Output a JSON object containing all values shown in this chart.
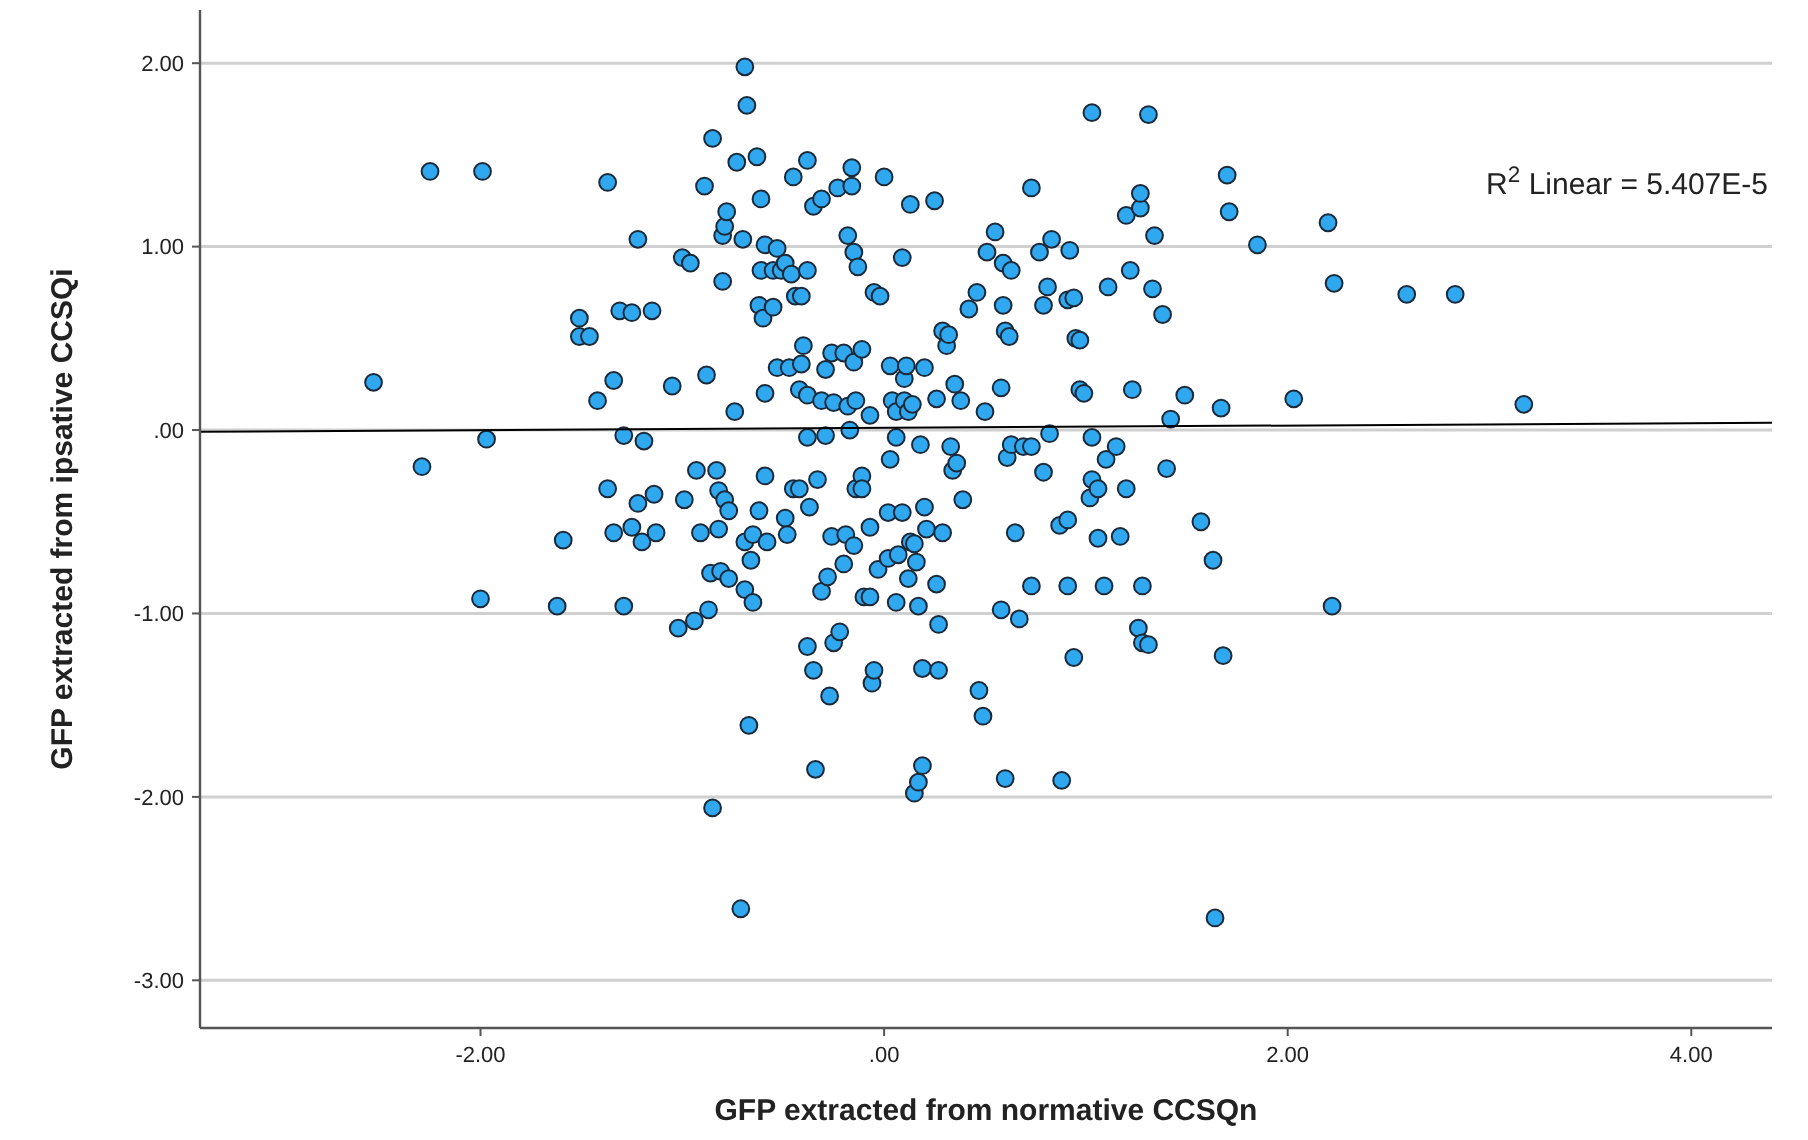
{
  "chart_data": {
    "type": "scatter",
    "xlabel": "GFP extracted from normative CCSQn",
    "ylabel": "GFP extracted from ipsative CCSQi",
    "annotations": [
      "R$^{2}$ Linear = 5.407E-5"
    ],
    "xlim": [
      -3.39,
      4.4
    ],
    "ylim": [
      -3.26,
      2.29
    ],
    "xticks": [
      {
        "value": -2,
        "label": "-2.00"
      },
      {
        "value": 0,
        "label": ".00"
      },
      {
        "value": 2,
        "label": "2.00"
      },
      {
        "value": 4,
        "label": "4.00"
      }
    ],
    "yticks": [
      {
        "value": -3,
        "label": "-3.00"
      },
      {
        "value": -2,
        "label": "-2.00"
      },
      {
        "value": -1,
        "label": "-1.00"
      },
      {
        "value": 0,
        "label": ".00"
      },
      {
        "value": 1,
        "label": "1.00"
      },
      {
        "value": 2,
        "label": "2.00"
      }
    ],
    "grid": "y",
    "marker": "circle",
    "series": [
      {
        "color": "#2fa8f0",
        "x": [
          -2.53,
          -2.29,
          -2.25,
          -1.99,
          -1.97,
          -2.0,
          -1.62,
          -1.59,
          -1.51,
          -1.51,
          -1.46,
          -1.42,
          -1.37,
          -1.37,
          -1.34,
          -1.34,
          -1.31,
          -1.29,
          -1.29,
          -1.25,
          -1.25,
          -1.22,
          -1.22,
          -1.2,
          -1.19,
          -1.15,
          -1.14,
          -1.13,
          -1.05,
          -1.02,
          -1.0,
          -0.99,
          -0.96,
          -0.94,
          -0.93,
          -0.91,
          -0.89,
          -0.88,
          -0.87,
          -0.85,
          -0.85,
          -0.86,
          -0.83,
          -0.82,
          -0.82,
          -0.81,
          -0.8,
          -0.8,
          -0.79,
          -0.78,
          -0.79,
          -0.77,
          -0.77,
          -0.74,
          -0.73,
          -0.71,
          -0.7,
          -0.69,
          -0.69,
          -0.69,
          -0.68,
          -0.67,
          -0.66,
          -0.65,
          -0.65,
          -0.63,
          -0.62,
          -0.62,
          -0.61,
          -0.61,
          -0.6,
          -0.59,
          -0.59,
          -0.59,
          -0.58,
          -0.55,
          -0.55,
          -0.53,
          -0.53,
          -0.51,
          -0.49,
          -0.49,
          -0.47,
          -0.48,
          -0.46,
          -0.45,
          -0.45,
          -0.44,
          -0.42,
          -0.42,
          -0.41,
          -0.41,
          -0.4,
          -0.38,
          -0.38,
          -0.38,
          -0.38,
          -0.38,
          -0.37,
          -0.35,
          -0.35,
          -0.34,
          -0.33,
          -0.31,
          -0.31,
          -0.31,
          -0.29,
          -0.29,
          -0.28,
          -0.27,
          -0.26,
          -0.25,
          -0.26,
          -0.25,
          -0.23,
          -0.22,
          -0.2,
          -0.2,
          -0.19,
          -0.18,
          -0.18,
          -0.17,
          -0.16,
          -0.16,
          -0.15,
          -0.15,
          -0.15,
          -0.14,
          -0.14,
          -0.13,
          -0.11,
          -0.11,
          -0.11,
          -0.1,
          -0.07,
          -0.07,
          -0.07,
          -0.06,
          -0.05,
          -0.05,
          -0.03,
          -0.02,
          0.0,
          0.02,
          0.02,
          0.03,
          0.03,
          0.04,
          0.06,
          0.06,
          0.06,
          0.07,
          0.09,
          0.09,
          0.1,
          0.1,
          0.11,
          0.12,
          0.12,
          0.13,
          0.13,
          0.14,
          0.15,
          0.15,
          0.16,
          0.17,
          0.17,
          0.18,
          0.19,
          0.19,
          0.2,
          0.2,
          0.21,
          0.25,
          0.26,
          0.26,
          0.27,
          0.27,
          0.29,
          0.29,
          0.31,
          0.32,
          0.33,
          0.34,
          0.35,
          0.36,
          0.38,
          0.39,
          0.42,
          0.46,
          0.47,
          0.49,
          0.5,
          0.51,
          0.55,
          0.58,
          0.58,
          0.59,
          0.59,
          0.6,
          0.6,
          0.61,
          0.62,
          0.63,
          0.63,
          0.65,
          0.67,
          0.69,
          0.73,
          0.73,
          0.73,
          0.77,
          0.79,
          0.79,
          0.81,
          0.82,
          0.83,
          0.87,
          0.88,
          0.91,
          0.91,
          0.91,
          0.92,
          0.94,
          0.94,
          0.95,
          0.97,
          0.97,
          0.99,
          1.03,
          1.03,
          1.03,
          1.02,
          1.06,
          1.06,
          1.09,
          1.1,
          1.11,
          1.15,
          1.17,
          1.2,
          1.2,
          1.22,
          1.23,
          1.26,
          1.27,
          1.27,
          1.28,
          1.28,
          1.31,
          1.31,
          1.33,
          1.34,
          1.38,
          1.4,
          1.42,
          1.49,
          1.57,
          1.63,
          1.64,
          1.67,
          1.68,
          1.7,
          1.71,
          1.85,
          2.03,
          2.2,
          2.22,
          2.23,
          2.59,
          2.83,
          3.17
        ],
        "values": [
          0.26,
          -0.2,
          1.41,
          1.41,
          -0.05,
          -0.92,
          -0.96,
          -0.6,
          0.61,
          0.51,
          0.51,
          0.16,
          1.35,
          -0.32,
          0.27,
          -0.56,
          0.65,
          -0.03,
          -0.96,
          -0.53,
          0.64,
          1.04,
          -0.4,
          -0.61,
          -0.06,
          0.65,
          -0.35,
          -0.56,
          0.24,
          -1.08,
          0.94,
          -0.38,
          0.91,
          -1.04,
          -0.22,
          -0.56,
          1.33,
          0.3,
          -0.98,
          1.59,
          -2.06,
          -0.78,
          -0.22,
          -0.33,
          -0.54,
          -0.77,
          0.81,
          1.06,
          1.11,
          1.19,
          -0.38,
          -0.81,
          -0.44,
          0.1,
          1.46,
          -2.61,
          1.04,
          1.98,
          -0.61,
          -0.87,
          1.77,
          -1.61,
          -0.71,
          -0.94,
          -0.57,
          1.49,
          -0.44,
          0.68,
          0.87,
          1.26,
          0.61,
          1.01,
          0.2,
          -0.25,
          -0.61,
          0.87,
          0.67,
          0.99,
          0.34,
          0.87,
          -0.48,
          0.91,
          0.34,
          -0.57,
          0.85,
          -0.32,
          1.38,
          0.73,
          0.22,
          -0.32,
          0.73,
          0.36,
          0.46,
          1.47,
          0.19,
          -0.04,
          -1.18,
          0.87,
          -0.42,
          1.22,
          -1.31,
          -1.85,
          -0.27,
          1.26,
          0.16,
          -0.88,
          0.33,
          -0.03,
          -0.8,
          -1.45,
          0.42,
          0.15,
          -0.58,
          -1.16,
          1.32,
          -1.1,
          0.42,
          -0.73,
          -0.57,
          1.06,
          0.13,
          0.0,
          1.43,
          1.33,
          0.97,
          -0.63,
          0.37,
          0.16,
          -0.32,
          0.89,
          -0.25,
          0.44,
          -0.32,
          -0.91,
          0.08,
          -0.53,
          -0.91,
          -1.38,
          0.75,
          -1.31,
          -0.76,
          0.73,
          1.38,
          -0.7,
          -0.45,
          -0.16,
          0.35,
          0.16,
          0.1,
          -0.04,
          -0.94,
          -0.68,
          0.94,
          -0.45,
          0.16,
          0.28,
          0.35,
          0.1,
          -0.81,
          1.23,
          -0.61,
          0.14,
          -1.98,
          -0.62,
          -0.72,
          -1.92,
          -0.96,
          -0.08,
          -1.83,
          -1.3,
          -0.42,
          0.34,
          -0.54,
          1.25,
          0.17,
          -0.84,
          -1.06,
          -1.31,
          -0.56,
          0.54,
          0.46,
          0.52,
          -0.09,
          -0.22,
          0.25,
          -0.18,
          0.16,
          -0.38,
          0.66,
          0.75,
          -1.42,
          -1.56,
          0.1,
          0.97,
          1.08,
          -0.98,
          0.23,
          0.91,
          0.68,
          0.54,
          -1.9,
          -0.15,
          0.51,
          -0.08,
          0.87,
          -0.56,
          -1.03,
          -0.09,
          -0.09,
          1.32,
          -0.85,
          0.97,
          -0.23,
          0.68,
          0.78,
          -0.02,
          1.04,
          -0.52,
          -1.91,
          -0.49,
          0.71,
          -0.85,
          0.98,
          -1.24,
          0.72,
          0.5,
          0.49,
          0.22,
          0.2,
          1.73,
          -0.04,
          -0.27,
          -0.37,
          -0.32,
          -0.59,
          -0.85,
          -0.16,
          0.78,
          -0.09,
          -0.58,
          1.17,
          -0.32,
          0.87,
          0.22,
          -1.08,
          1.21,
          1.29,
          -0.85,
          -1.16,
          -1.17,
          1.72,
          0.77,
          1.06,
          0.63,
          -0.21,
          0.06,
          0.19,
          -0.5,
          -0.71,
          -2.66,
          0.12,
          -1.23,
          1.39,
          1.19,
          1.01,
          0.17,
          1.13,
          -0.96,
          0.8,
          0.74,
          0.74,
          0.14
        ]
      },
      {
        "type": "line",
        "color": "#000000",
        "marker": "none",
        "x": [
          -3.39,
          4.4
        ],
        "values": [
          -0.01,
          0.04
        ]
      }
    ]
  }
}
